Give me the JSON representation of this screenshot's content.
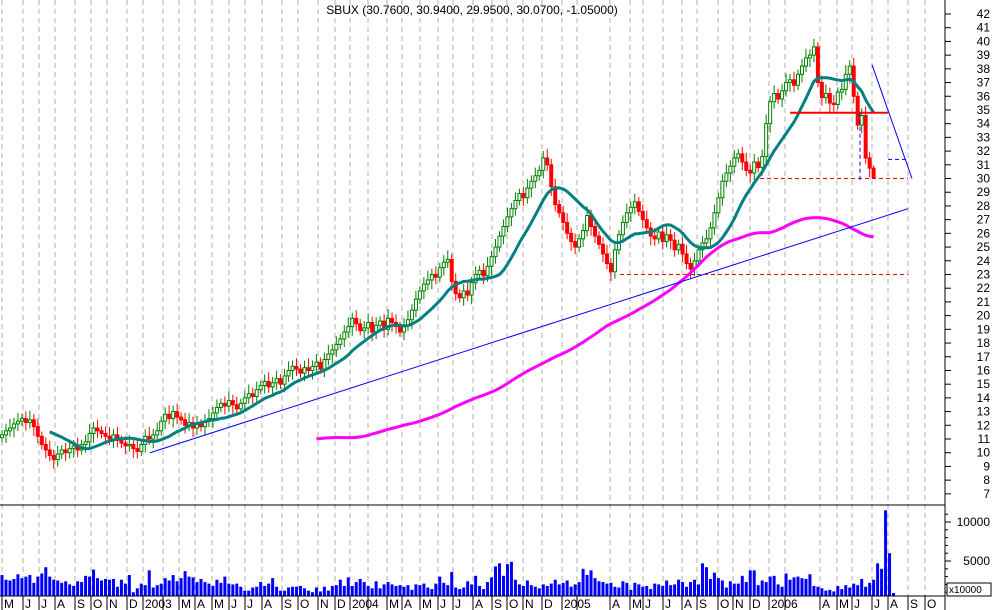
{
  "chart_data": {
    "type": "candlestick",
    "title": "SBUX (30.7600, 30.9400, 29.9500, 30.0700, -1.05000)",
    "last_bar": {
      "open": 30.76,
      "high": 30.94,
      "low": 29.95,
      "close": 30.07,
      "change": -1.05
    },
    "price_axis": {
      "min": 7,
      "max": 42,
      "ticks": [
        7,
        8,
        9,
        10,
        11,
        12,
        13,
        14,
        15,
        16,
        17,
        18,
        19,
        20,
        21,
        22,
        23,
        24,
        25,
        26,
        27,
        28,
        29,
        30,
        31,
        32,
        33,
        34,
        35,
        36,
        37,
        38,
        39,
        40,
        41,
        42
      ]
    },
    "volume_axis": {
      "ticks": [
        5000,
        10000
      ],
      "unit_label": "x10000"
    },
    "x_labels": [
      "M",
      "J",
      "J",
      "A",
      "S",
      "O",
      "N",
      "D",
      "2003",
      "M",
      "A",
      "M",
      "J",
      "J",
      "A",
      "S",
      "O",
      "N",
      "D",
      "2004",
      "M",
      "A",
      "M",
      "J",
      "J",
      "A",
      "S",
      "O",
      "N",
      "D",
      "2005",
      "A",
      "M",
      "J",
      "J",
      "A",
      "S",
      "O",
      "N",
      "D",
      "2006",
      "A",
      "M",
      "J",
      "J",
      "A",
      "S",
      "O"
    ],
    "weekly_close": [
      11.3,
      11.6,
      11.8,
      12.1,
      12.3,
      12.5,
      12.2,
      12.4,
      11.9,
      11.2,
      10.6,
      10.2,
      9.8,
      9.5,
      9.9,
      10.2,
      10.0,
      10.3,
      10.5,
      10.2,
      10.6,
      10.8,
      11.4,
      11.8,
      11.6,
      11.4,
      11.2,
      11.0,
      11.3,
      10.9,
      10.7,
      10.5,
      10.6,
      10.3,
      10.1,
      10.6,
      11.2,
      11.0,
      11.3,
      11.6,
      12.3,
      12.8,
      12.5,
      13.0,
      12.6,
      12.4,
      12.0,
      12.2,
      11.8,
      12.1,
      11.9,
      12.3,
      12.5,
      12.9,
      13.3,
      13.6,
      13.4,
      13.8,
      13.5,
      13.2,
      13.6,
      14.0,
      14.3,
      14.1,
      14.6,
      14.9,
      15.2,
      14.8,
      15.1,
      15.4,
      15.0,
      15.6,
      16.0,
      16.3,
      16.1,
      15.8,
      16.2,
      16.0,
      16.3,
      16.6,
      16.1,
      16.8,
      17.2,
      17.5,
      17.9,
      18.3,
      18.8,
      19.2,
      19.8,
      19.4,
      18.9,
      19.1,
      19.5,
      18.8,
      19.3,
      19.6,
      19.0,
      19.8,
      19.5,
      19.2,
      18.8,
      19.3,
      19.7,
      20.4,
      21.2,
      21.8,
      22.3,
      22.6,
      23.0,
      22.8,
      23.5,
      23.9,
      24.1,
      22.5,
      21.6,
      21.3,
      21.8,
      21.5,
      22.4,
      23.0,
      23.3,
      22.9,
      23.6,
      24.3,
      25.0,
      25.8,
      26.5,
      27.2,
      27.8,
      28.4,
      28.9,
      28.6,
      29.3,
      29.8,
      30.2,
      30.6,
      31.5,
      31.0,
      29.4,
      28.1,
      27.5,
      26.8,
      26.0,
      25.4,
      25.0,
      25.6,
      26.2,
      27.3,
      26.5,
      25.8,
      25.2,
      24.5,
      23.8,
      23.2,
      24.8,
      25.9,
      26.8,
      27.5,
      27.9,
      28.3,
      27.6,
      27.0,
      26.4,
      25.8,
      25.6,
      26.1,
      25.4,
      25.9,
      25.5,
      24.8,
      25.2,
      24.5,
      23.8,
      23.4,
      24.0,
      24.8,
      25.3,
      25.6,
      26.4,
      27.5,
      28.6,
      29.8,
      30.4,
      30.9,
      31.5,
      31.8,
      31.2,
      30.6,
      30.4,
      31.2,
      30.8,
      31.6,
      34.0,
      35.6,
      36.2,
      35.8,
      36.4,
      37.0,
      37.2,
      36.8,
      37.6,
      38.2,
      38.8,
      39.0,
      39.6,
      37.0,
      35.9,
      36.2,
      35.5,
      35.4,
      36.3,
      36.5,
      37.6,
      38.2,
      36.0,
      33.9,
      34.6,
      31.5,
      30.76,
      30.07
    ],
    "weekly_volume": [
      3200,
      2600,
      2500,
      2700,
      3300,
      2800,
      3000,
      3200,
      2200,
      3000,
      3400,
      4200,
      3000,
      2600,
      2500,
      2200,
      2400,
      2000,
      1800,
      2400,
      2300,
      3100,
      3000,
      3900,
      2800,
      2500,
      2700,
      2600,
      2700,
      1700,
      2600,
      2100,
      3200,
      1000,
      1500,
      2100,
      1900,
      3800,
      1600,
      1900,
      2100,
      2800,
      2500,
      3200,
      2400,
      2800,
      3700,
      3000,
      2900,
      2300,
      2700,
      2300,
      2100,
      1800,
      2600,
      2200,
      3000,
      2100,
      2000,
      2100,
      1700,
      1200,
      1200,
      1600,
      1700,
      2300,
      1800,
      2100,
      2800,
      1700,
      1200,
      1200,
      1600,
      1700,
      1700,
      1800,
      1500,
      1200,
      1000,
      1600,
      1100,
      1700,
      1200,
      1800,
      1900,
      2600,
      1800,
      2900,
      1800,
      2300,
      2700,
      2300,
      1800,
      1500,
      2400,
      1500,
      2000,
      2300,
      2000,
      1800,
      1900,
      1700,
      1900,
      1300,
      2000,
      1900,
      2100,
      1600,
      1400,
      2100,
      3000,
      2200,
      1900,
      3600,
      1600,
      1400,
      1600,
      2400,
      2000,
      3100,
      1800,
      1400,
      2300,
      2900,
      4300,
      4700,
      3100,
      4600,
      4900,
      2600,
      2000,
      1800,
      2500,
      1900,
      1700,
      1500,
      2000,
      1800,
      2100,
      2600,
      2000,
      2200,
      2500,
      1700,
      2000,
      2300,
      4000,
      3200,
      3800,
      2800,
      2400,
      2300,
      2100,
      2200,
      1700,
      1600,
      2400,
      2200,
      1300,
      2200,
      2000,
      1700,
      1800,
      1400,
      2100,
      2000,
      1800,
      2500,
      1900,
      2000,
      2600,
      2300,
      1700,
      2300,
      2600,
      2000,
      4700,
      4200,
      2700,
      3500,
      2800,
      2500,
      1600,
      2400,
      2100,
      2100,
      3100,
      2300,
      3800,
      3800,
      1900,
      2500,
      2300,
      3000,
      3100,
      2000,
      1700,
      3400,
      2600,
      2900,
      3000,
      2800,
      2700,
      3300,
      1800,
      1700,
      1500,
      1200,
      1300,
      1100,
      1800,
      1400,
      1900,
      1600,
      2100,
      1900,
      2700,
      1700,
      2200,
      2600,
      4700,
      4000,
      11500,
      6000,
      900
    ],
    "overlays": {
      "moving_average_short_color": "#008080",
      "moving_average_long_color": "#ff00ff"
    },
    "colors": {
      "up": "#008000",
      "down": "#ff0000",
      "volume": "#0000ff",
      "trendline": "#0000ff",
      "support": "#ff0000"
    }
  }
}
